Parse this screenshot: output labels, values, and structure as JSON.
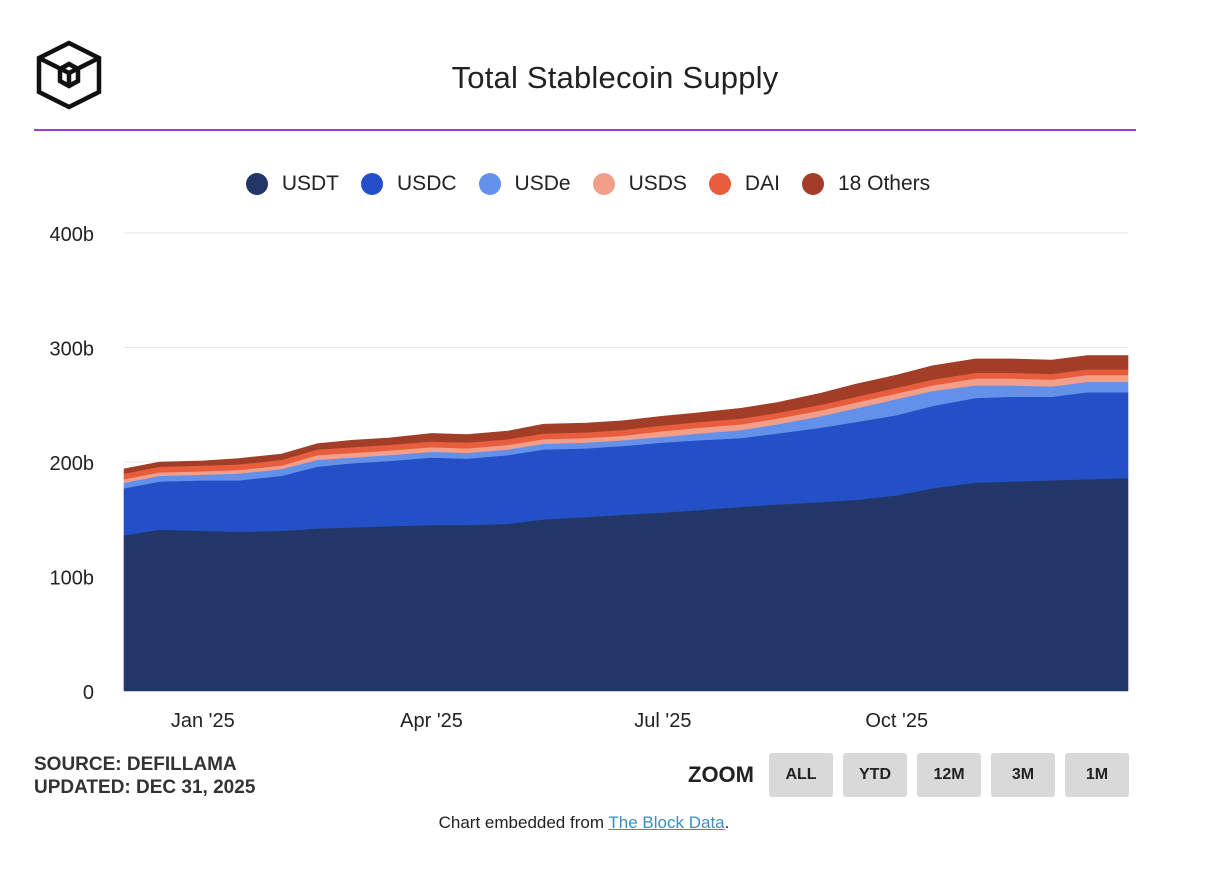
{
  "header": {
    "title": "Total Stablecoin Supply"
  },
  "colors": {
    "accent_rule": "#a03ad4",
    "grid": "#e6e6e6"
  },
  "footer": {
    "source": "SOURCE: DEFILLAMA",
    "updated": "UPDATED: DEC 31, 2025",
    "embed_prefix": "Chart embedded from ",
    "embed_link": "The Block Data",
    "embed_suffix": "."
  },
  "zoom": {
    "label": "ZOOM",
    "buttons": [
      "ALL",
      "YTD",
      "12M",
      "3M",
      "1M"
    ]
  },
  "chart_data": {
    "type": "area",
    "stacked": true,
    "y_tick_labels": [
      "0",
      "100b",
      "200b",
      "300b",
      "400b"
    ],
    "y_ticks": [
      0,
      100,
      200,
      300,
      400
    ],
    "ylim": [
      0,
      400
    ],
    "x_range": [
      "2024-12-01",
      "2025-12-31"
    ],
    "x_ticks": [
      {
        "label": "Jan '25",
        "date": "2025-01-01"
      },
      {
        "label": "Apr '25",
        "date": "2025-04-01"
      },
      {
        "label": "Jul '25",
        "date": "2025-07-01"
      },
      {
        "label": "Oct '25",
        "date": "2025-10-01"
      }
    ],
    "legend_position": "top-center",
    "grid": true,
    "dates": [
      "2024-12-01",
      "2024-12-15",
      "2025-01-01",
      "2025-01-15",
      "2025-02-01",
      "2025-02-15",
      "2025-03-01",
      "2025-03-15",
      "2025-04-01",
      "2025-04-15",
      "2025-05-01",
      "2025-05-15",
      "2025-06-01",
      "2025-06-15",
      "2025-07-01",
      "2025-07-15",
      "2025-08-01",
      "2025-08-15",
      "2025-09-01",
      "2025-09-15",
      "2025-10-01",
      "2025-10-15",
      "2025-11-01",
      "2025-11-15",
      "2025-12-01",
      "2025-12-15",
      "2025-12-31"
    ],
    "series": [
      {
        "name": "USDT",
        "color": "#223767",
        "values": [
          136,
          141,
          140,
          139,
          140,
          142,
          143,
          144,
          145,
          145,
          146,
          150,
          152,
          154,
          156,
          158,
          161,
          163,
          165,
          167,
          171,
          177,
          182,
          183,
          184,
          185,
          186
        ]
      },
      {
        "name": "USDC",
        "color": "#2350c6",
        "values": [
          41,
          42,
          44,
          45,
          48,
          54,
          56,
          57,
          59,
          58,
          60,
          61,
          60,
          60,
          61,
          61,
          60,
          62,
          65,
          68,
          70,
          72,
          74,
          74,
          73,
          76,
          75
        ]
      },
      {
        "name": "USDe",
        "color": "#6391ea",
        "values": [
          5,
          5,
          5,
          6,
          6,
          6,
          5,
          5,
          5,
          5,
          5,
          5,
          5,
          5,
          5,
          6,
          7,
          8,
          10,
          12,
          14,
          13,
          11,
          10,
          9,
          9,
          9
        ]
      },
      {
        "name": "USDS",
        "color": "#f19e8a",
        "values": [
          3,
          3,
          3,
          3,
          3,
          4,
          4,
          4,
          4,
          4,
          4,
          4,
          4,
          4,
          5,
          5,
          5,
          5,
          5,
          5,
          5,
          5,
          6,
          6,
          6,
          6,
          6
        ]
      },
      {
        "name": "DAI",
        "color": "#e75d3d",
        "values": [
          5,
          5,
          5,
          5,
          5,
          5,
          5,
          5,
          5,
          5,
          5,
          5,
          5,
          5,
          5,
          5,
          5,
          5,
          5,
          5,
          5,
          5,
          5,
          5,
          5,
          5,
          5
        ]
      },
      {
        "name": "18 Others",
        "color": "#a23e28",
        "values": [
          4,
          4,
          4,
          5,
          5,
          5,
          6,
          6,
          7,
          7,
          7,
          8,
          8,
          8,
          8,
          8,
          9,
          9,
          10,
          11,
          11,
          12,
          12,
          12,
          12,
          12,
          12
        ]
      }
    ]
  }
}
